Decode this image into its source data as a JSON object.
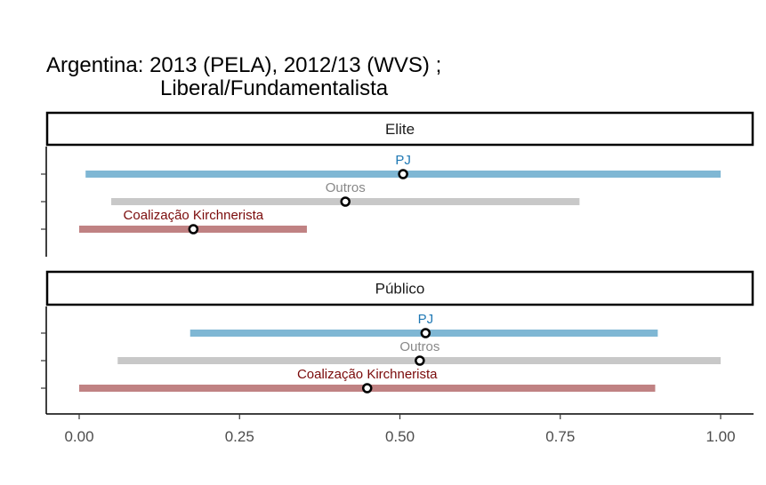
{
  "chart_data": {
    "type": "dot-range",
    "title_lines": [
      "Argentina: 2013 (PELA), 2012/13 (WVS) ;",
      "Liberal/Fundamentalista"
    ],
    "xlim": [
      -0.05,
      1.05
    ],
    "x_ticks": [
      0,
      0.25,
      0.5,
      0.75,
      1
    ],
    "x_tick_labels": [
      "0.00",
      "0.25",
      "0.50",
      "0.75",
      "1.00"
    ],
    "series_colors": {
      "PJ": {
        "bar": "#7fb7d4",
        "label": "#1f78b4"
      },
      "Outros": {
        "bar": "#c8c8c8",
        "label": "#888888"
      },
      "Coalização Kirchnerista": {
        "bar": "#c08283",
        "label": "#7a0a0a"
      }
    },
    "panels": [
      {
        "label": "Elite",
        "rows": [
          {
            "name": "PJ",
            "low": 0.01,
            "high": 1.0,
            "point": 0.505
          },
          {
            "name": "Outros",
            "low": 0.05,
            "high": 0.78,
            "point": 0.415
          },
          {
            "name": "Coalização Kirchnerista",
            "low": 0.0,
            "high": 0.355,
            "point": 0.178
          }
        ]
      },
      {
        "label": "Público",
        "rows": [
          {
            "name": "PJ",
            "low": 0.173,
            "high": 0.902,
            "point": 0.54
          },
          {
            "name": "Outros",
            "low": 0.06,
            "high": 1.0,
            "point": 0.531
          },
          {
            "name": "Coalização Kirchnerista",
            "low": 0.0,
            "high": 0.898,
            "point": 0.449
          }
        ]
      }
    ]
  }
}
